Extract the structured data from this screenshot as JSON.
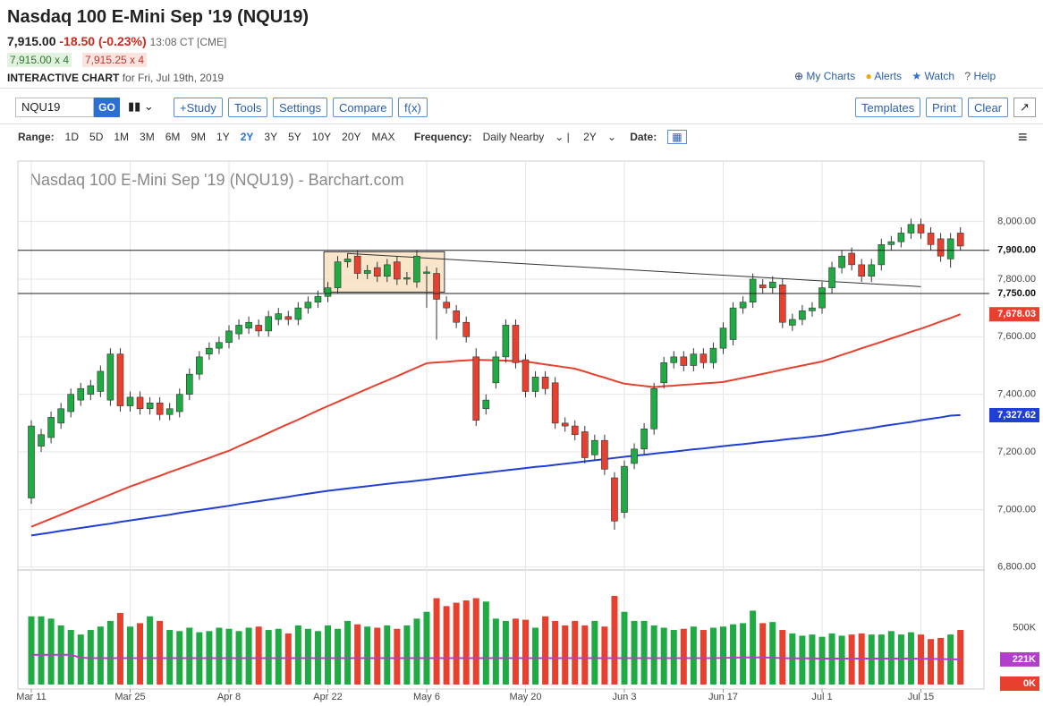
{
  "header": {
    "title": "Nasdaq 100 E-Mini Sep '19 (NQU19)",
    "last": "7,915.00",
    "change": "-18.50 (-0.23%)",
    "time": "13:08 CT [CME]",
    "bid": "7,915.00 x 4",
    "ask": "7,915.25 x 4",
    "chart_label": "INTERACTIVE CHART",
    "date_label": "for Fri, Jul 19th, 2019",
    "links": [
      "My Charts",
      "Alerts",
      "Watch",
      "Help"
    ]
  },
  "toolbar": {
    "symbol": "NQU19",
    "go": "GO",
    "left_buttons": [
      "+Study",
      "Tools",
      "Settings",
      "Compare",
      "f(x)"
    ],
    "right_buttons": [
      "Templates",
      "Print",
      "Clear"
    ]
  },
  "range_bar": {
    "range_label": "Range:",
    "ranges": [
      "1D",
      "5D",
      "1M",
      "3M",
      "6M",
      "9M",
      "1Y",
      "2Y",
      "3Y",
      "5Y",
      "10Y",
      "20Y",
      "MAX"
    ],
    "active_range": "2Y",
    "frequency_label": "Frequency:",
    "frequency": "Daily Nearby",
    "period": "2Y",
    "date_label": "Date:"
  },
  "chart_data": {
    "type": "candlestick",
    "title": "Nasdaq 100 E-Mini Sep '19 (NQU19) - Barchart.com",
    "up_color": "#1faa44",
    "down_color": "#e8402e",
    "categories": [
      "Mar 11",
      null,
      null,
      null,
      null,
      null,
      null,
      null,
      null,
      null,
      "Mar 25",
      null,
      null,
      null,
      null,
      null,
      null,
      null,
      null,
      null,
      "Apr 8",
      null,
      null,
      null,
      null,
      null,
      null,
      null,
      null,
      null,
      "Apr 22",
      null,
      null,
      null,
      null,
      null,
      null,
      null,
      null,
      null,
      "May 6",
      null,
      null,
      null,
      null,
      null,
      null,
      null,
      null,
      null,
      "May 20",
      null,
      null,
      null,
      null,
      null,
      null,
      null,
      null,
      null,
      "Jun 3",
      null,
      null,
      null,
      null,
      null,
      null,
      null,
      null,
      null,
      "Jun 17",
      null,
      null,
      null,
      null,
      null,
      null,
      null,
      null,
      null,
      "Jul 1",
      null,
      null,
      null,
      null,
      null,
      null,
      null,
      null,
      null,
      "Jul 15",
      null,
      null,
      null,
      null
    ],
    "open": [
      7040,
      7220,
      7250,
      7300,
      7340,
      7380,
      7400,
      7410,
      7380,
      7540,
      7360,
      7390,
      7350,
      7370,
      7330,
      7340,
      7400,
      7470,
      7540,
      7560,
      7580,
      7610,
      7630,
      7640,
      7620,
      7660,
      7670,
      7660,
      7700,
      7720,
      7740,
      7770,
      7860,
      7880,
      7820,
      7840,
      7810,
      7860,
      7800,
      7790,
      7820,
      7820,
      7720,
      7690,
      7650,
      7530,
      7350,
      7440,
      7530,
      7640,
      7520,
      7410,
      7460,
      7440,
      7300,
      7290,
      7270,
      7190,
      7240,
      7110,
      6990,
      7160,
      7210,
      7280,
      7440,
      7510,
      7530,
      7500,
      7540,
      7510,
      7560,
      7590,
      7700,
      7720,
      7780,
      7770,
      7780,
      7640,
      7660,
      7690,
      7700,
      7770,
      7840,
      7890,
      7850,
      7810,
      7850,
      7920,
      7930,
      7960,
      7990,
      7960,
      7940,
      7870,
      7960
    ],
    "high": [
      7310,
      7280,
      7340,
      7370,
      7420,
      7440,
      7450,
      7500,
      7560,
      7560,
      7410,
      7410,
      7390,
      7390,
      7370,
      7420,
      7490,
      7550,
      7580,
      7600,
      7640,
      7660,
      7670,
      7660,
      7690,
      7700,
      7690,
      7720,
      7740,
      7760,
      7790,
      7880,
      7890,
      7900,
      7850,
      7860,
      7870,
      7880,
      7825,
      7900,
      7845,
      7840,
      7740,
      7710,
      7670,
      7560,
      7400,
      7550,
      7660,
      7660,
      7540,
      7480,
      7480,
      7460,
      7320,
      7310,
      7290,
      7260,
      7260,
      7130,
      7170,
      7230,
      7300,
      7440,
      7530,
      7550,
      7550,
      7560,
      7560,
      7580,
      7650,
      7720,
      7740,
      7820,
      7800,
      7810,
      7800,
      7680,
      7710,
      7720,
      7790,
      7860,
      7900,
      7910,
      7870,
      7870,
      7940,
      7950,
      7980,
      8010,
      8010,
      7980,
      7960,
      7960,
      7980
    ],
    "low": [
      7020,
      7200,
      7230,
      7280,
      7320,
      7360,
      7380,
      7390,
      7360,
      7340,
      7340,
      7330,
      7330,
      7310,
      7310,
      7320,
      7380,
      7450,
      7520,
      7540,
      7560,
      7590,
      7610,
      7600,
      7600,
      7640,
      7640,
      7640,
      7680,
      7700,
      7720,
      7750,
      7840,
      7800,
      7800,
      7790,
      7790,
      7780,
      7780,
      7770,
      7700,
      7590,
      7680,
      7630,
      7580,
      7290,
      7330,
      7420,
      7510,
      7490,
      7390,
      7390,
      7400,
      7280,
      7270,
      7240,
      7160,
      7170,
      7120,
      6930,
      6970,
      7140,
      7190,
      7260,
      7420,
      7490,
      7480,
      7480,
      7490,
      7490,
      7540,
      7570,
      7680,
      7700,
      7750,
      7750,
      7630,
      7620,
      7640,
      7670,
      7680,
      7750,
      7820,
      7830,
      7790,
      7790,
      7830,
      7900,
      7910,
      7940,
      7940,
      7900,
      7860,
      7840,
      7900
    ],
    "close": [
      7290,
      7260,
      7320,
      7350,
      7400,
      7420,
      7430,
      7480,
      7540,
      7360,
      7390,
      7350,
      7370,
      7330,
      7350,
      7400,
      7470,
      7530,
      7560,
      7580,
      7620,
      7640,
      7650,
      7620,
      7670,
      7680,
      7660,
      7700,
      7720,
      7740,
      7770,
      7860,
      7870,
      7820,
      7830,
      7810,
      7850,
      7800,
      7805,
      7880,
      7825,
      7730,
      7700,
      7650,
      7600,
      7310,
      7380,
      7530,
      7640,
      7510,
      7410,
      7460,
      7420,
      7300,
      7290,
      7260,
      7180,
      7240,
      7140,
      6960,
      7150,
      7210,
      7280,
      7420,
      7510,
      7530,
      7500,
      7540,
      7510,
      7560,
      7630,
      7700,
      7720,
      7800,
      7770,
      7790,
      7650,
      7660,
      7690,
      7700,
      7770,
      7840,
      7880,
      7850,
      7810,
      7850,
      7920,
      7930,
      7960,
      7990,
      7960,
      7920,
      7880,
      7940,
      7915
    ],
    "moving_averages": [
      {
        "color": "#e8402e",
        "values": [
          6940,
          6954,
          6968,
          6982,
          6996,
          7010,
          7024,
          7038,
          7052,
          7066,
          7080,
          7092,
          7105,
          7117,
          7130,
          7142,
          7154,
          7167,
          7179,
          7192,
          7204,
          7220,
          7235,
          7250,
          7266,
          7282,
          7297,
          7312,
          7328,
          7344,
          7359,
          7374,
          7389,
          7404,
          7419,
          7434,
          7448,
          7463,
          7478,
          7493,
          7508,
          7511,
          7513,
          7516,
          7518,
          7520,
          7519,
          7518,
          7517,
          7515,
          7514,
          7509,
          7504,
          7499,
          7494,
          7489,
          7479,
          7468,
          7458,
          7447,
          7437,
          7433,
          7429,
          7425,
          7428,
          7430,
          7433,
          7435,
          7438,
          7440,
          7443,
          7450,
          7457,
          7464,
          7471,
          7478,
          7486,
          7493,
          7500,
          7507,
          7514,
          7525,
          7537,
          7548,
          7560,
          7571,
          7582,
          7594,
          7605,
          7617,
          7628,
          7640,
          7653,
          7665,
          7678
        ]
      },
      {
        "color": "#1f3fd6",
        "values": [
          6910,
          6915,
          6920,
          6926,
          6931,
          6936,
          6941,
          6946,
          6951,
          6957,
          6962,
          6967,
          6972,
          6977,
          6982,
          6988,
          6993,
          6998,
          7003,
          7008,
          7013,
          7019,
          7024,
          7029,
          7034,
          7039,
          7044,
          7050,
          7055,
          7060,
          7065,
          7069,
          7073,
          7077,
          7081,
          7085,
          7089,
          7093,
          7096,
          7100,
          7104,
          7108,
          7112,
          7116,
          7120,
          7124,
          7128,
          7132,
          7136,
          7140,
          7144,
          7148,
          7151,
          7155,
          7159,
          7163,
          7167,
          7171,
          7175,
          7179,
          7183,
          7187,
          7190,
          7194,
          7198,
          7201,
          7205,
          7209,
          7212,
          7216,
          7220,
          7224,
          7227,
          7231,
          7235,
          7238,
          7242,
          7246,
          7249,
          7253,
          7257,
          7262,
          7268,
          7273,
          7278,
          7283,
          7289,
          7294,
          7299,
          7304,
          7310,
          7315,
          7320,
          7326,
          7328
        ]
      }
    ],
    "ma_labels": [
      {
        "value": 7678.03,
        "label": "7,678.03",
        "color": "#e8402e"
      },
      {
        "value": 7327.62,
        "label": "7,327.62",
        "color": "#1f3fd6"
      }
    ],
    "hlines": [
      {
        "value": 7900,
        "label": "7,900.00"
      },
      {
        "value": 7750,
        "label": "7,750.00"
      }
    ],
    "box": {
      "x": [
        29.6,
        41.8
      ],
      "y": [
        7755,
        7895
      ]
    },
    "trendline": {
      "x": [
        32,
        90
      ],
      "y": [
        7889,
        7774
      ]
    },
    "ylim": [
      6790,
      8210
    ],
    "yticks": [
      {
        "value": 6800,
        "label": "6,800.00"
      },
      {
        "value": 7000,
        "label": "7,000.00"
      },
      {
        "value": 7200,
        "label": "7,200.00"
      },
      {
        "value": 7400,
        "label": "7,400.00"
      },
      {
        "value": 7600,
        "label": "7,600.00"
      },
      {
        "value": 7800,
        "label": "7,800.00"
      },
      {
        "value": 8000,
        "label": "8,000.00"
      }
    ],
    "grid": true,
    "volume": {
      "values": [
        600,
        600,
        580,
        520,
        480,
        440,
        480,
        510,
        560,
        630,
        510,
        540,
        600,
        560,
        480,
        470,
        500,
        460,
        470,
        500,
        490,
        470,
        500,
        510,
        480,
        490,
        450,
        520,
        490,
        470,
        520,
        490,
        560,
        530,
        510,
        500,
        520,
        490,
        520,
        580,
        640,
        760,
        690,
        720,
        740,
        760,
        730,
        580,
        560,
        580,
        570,
        500,
        600,
        560,
        520,
        560,
        520,
        560,
        510,
        780,
        640,
        560,
        560,
        520,
        500,
        480,
        490,
        510,
        480,
        500,
        510,
        530,
        540,
        650,
        540,
        550,
        480,
        450,
        430,
        440,
        420,
        450,
        430,
        440,
        450,
        440,
        440,
        470,
        440,
        460,
        440,
        400,
        410,
        440,
        480
      ],
      "average": [
        262,
        262,
        262,
        262,
        262,
        236,
        232,
        232,
        232,
        232,
        232,
        232,
        232,
        232,
        232,
        232,
        232,
        232,
        232,
        232,
        232,
        232,
        232,
        232,
        232,
        232,
        232,
        232,
        232,
        232,
        232,
        232,
        232,
        232,
        232,
        232,
        232,
        232,
        232,
        232,
        232,
        232,
        232,
        232,
        232,
        232,
        232,
        232,
        232,
        232,
        232,
        232,
        232,
        232,
        232,
        232,
        232,
        232,
        232,
        232,
        232,
        232,
        232,
        232,
        232,
        232,
        232,
        232,
        232,
        232,
        234,
        236,
        238,
        238,
        238,
        236,
        232,
        230,
        230,
        230,
        228,
        228,
        228,
        228,
        228,
        228,
        228,
        228,
        228,
        228,
        226,
        226,
        224,
        222,
        221
      ],
      "average_color": "#b23fc7",
      "ylim": [
        0,
        1000
      ],
      "yticks": [
        {
          "value": 500,
          "label": "500K"
        }
      ],
      "markers": [
        {
          "value": 221,
          "label": "221K",
          "color": "#b23fc7"
        },
        {
          "value": 0,
          "label": "0K",
          "color": "#e8402e"
        }
      ]
    }
  }
}
